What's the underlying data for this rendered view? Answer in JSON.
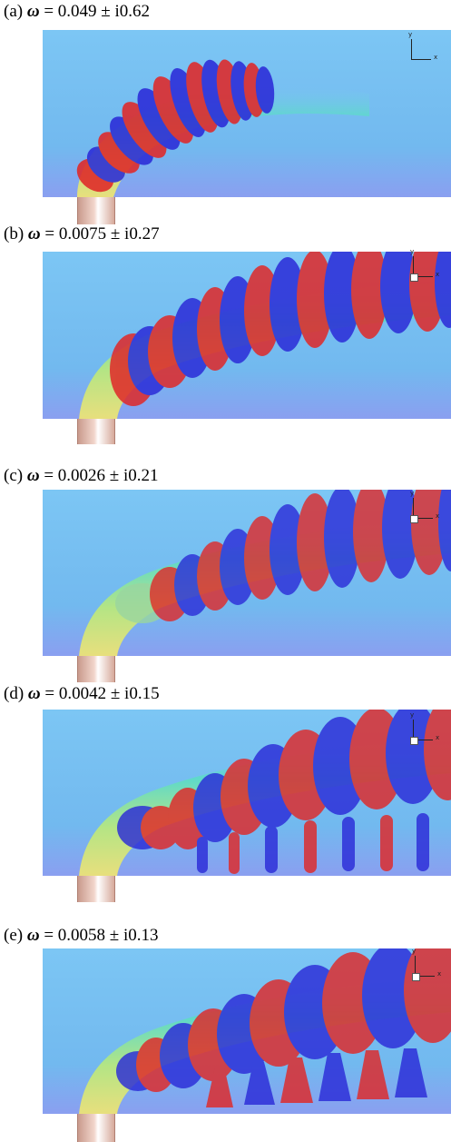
{
  "panels": [
    {
      "label": "(a)",
      "symbol": "ω",
      "value": "= 0.049 ± i0.62"
    },
    {
      "label": "(b)",
      "symbol": "ω",
      "value": "= 0.0075 ± i0.27"
    },
    {
      "label": "(c)",
      "symbol": "ω",
      "value": "= 0.0026 ± i0.21"
    },
    {
      "label": "(d)",
      "symbol": "ω",
      "value": "= 0.0042 ± i0.15"
    },
    {
      "label": "(e)",
      "symbol": "ω",
      "value": "= 0.0058 ± i0.13"
    }
  ],
  "axis_labels": {
    "x": "x",
    "y": "y"
  },
  "colors": {
    "background_flow": "#6fb8ee",
    "positive_vorticity": "#e02828",
    "negative_vorticity": "#2b2bd8",
    "nozzle": "#e0b6a8"
  }
}
